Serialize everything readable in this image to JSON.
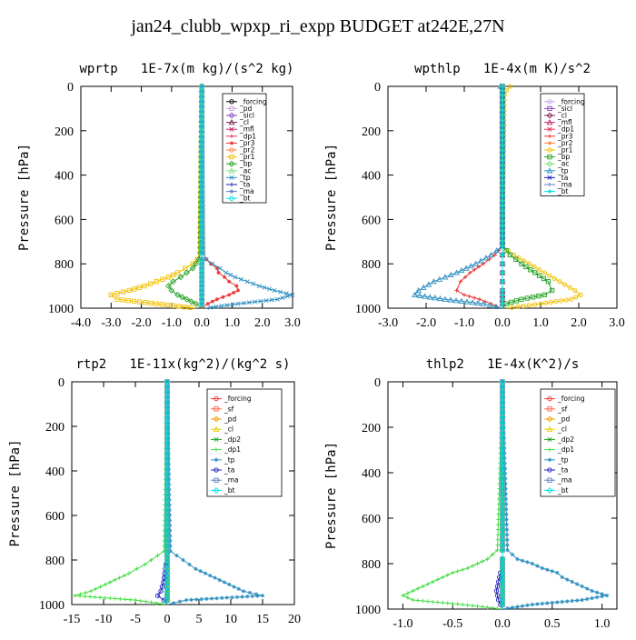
{
  "figure": {
    "title": "jan24_clubb_wpxp_ri_expp  BUDGET at242E,27N"
  },
  "chart_data": [
    {
      "type": "line",
      "title": "wprtp   1E-7x(m kg)/(s^2 kg)",
      "ylabel": "Pressure [hPa]",
      "xlim": [
        -4,
        3
      ],
      "ylim": [
        1000,
        0
      ],
      "x_ticks": [
        "-4.0",
        "-3.0",
        "-2.0",
        "-1.0",
        "0.0",
        "1.0",
        "2.0",
        "3.0"
      ],
      "y_ticks": [
        "0",
        "200",
        "400",
        "600",
        "800",
        "1000"
      ],
      "y": [
        0,
        750,
        780,
        800,
        820,
        840,
        860,
        880,
        900,
        920,
        940,
        960,
        980,
        1000
      ],
      "series": [
        {
          "name": "_forcing",
          "color": "#000000",
          "values": [
            0,
            0,
            0,
            0,
            0,
            0,
            0,
            0,
            0,
            0,
            0,
            0,
            0,
            0
          ]
        },
        {
          "name": "_pd",
          "color": "#c8a0e8",
          "values": [
            0,
            0,
            0,
            0,
            0,
            0,
            0,
            0,
            0,
            0,
            0,
            0,
            0,
            0
          ]
        },
        {
          "name": "_sicl",
          "color": "#8b3fbf",
          "values": [
            0,
            0,
            0,
            0,
            0,
            0,
            0,
            0,
            0,
            0,
            0,
            0,
            0,
            0
          ]
        },
        {
          "name": "_cl",
          "color": "#7a1f4f",
          "values": [
            0,
            0,
            0,
            0,
            0,
            0,
            0,
            0,
            0,
            0,
            0,
            0,
            0,
            0
          ]
        },
        {
          "name": "_mfl",
          "color": "#c0256a",
          "values": [
            0,
            0,
            0,
            0,
            0,
            0,
            0,
            0,
            0,
            0,
            0,
            0,
            0,
            0
          ]
        },
        {
          "name": "_dp1",
          "color": "#e0305a",
          "values": [
            0,
            0,
            0,
            0,
            0,
            0,
            0,
            0,
            0,
            0,
            0,
            0,
            0,
            0
          ]
        },
        {
          "name": "_pr3",
          "color": "#ee3030",
          "values": [
            0,
            0.05,
            0.15,
            0.3,
            0.5,
            0.55,
            0.75,
            0.9,
            1.15,
            1.2,
            0.9,
            0.5,
            0.2,
            0
          ]
        },
        {
          "name": "_pr2",
          "color": "#ff8040",
          "values": [
            0,
            0,
            0,
            0,
            0,
            0,
            0,
            0,
            0,
            0,
            0,
            0,
            0,
            0
          ]
        },
        {
          "name": "_pr1",
          "color": "#f0c000",
          "values": [
            0,
            -0.05,
            -0.15,
            -0.3,
            -0.55,
            -0.8,
            -1.1,
            -1.5,
            -1.9,
            -2.4,
            -3.0,
            -2.8,
            -1.5,
            -0.2
          ]
        },
        {
          "name": "_bp",
          "color": "#20a020",
          "values": [
            0,
            -0.05,
            -0.1,
            -0.2,
            -0.3,
            -0.5,
            -0.7,
            -0.95,
            -1.1,
            -1.0,
            -0.8,
            -0.5,
            -0.2,
            0
          ]
        },
        {
          "name": "_ac",
          "color": "#80e080",
          "values": [
            0,
            0,
            0,
            0,
            0,
            0,
            0,
            0,
            0,
            0,
            0,
            0,
            0,
            0
          ]
        },
        {
          "name": "_tp",
          "color": "#3090c0",
          "values": [
            0,
            0.05,
            0.15,
            0.35,
            0.6,
            0.8,
            1.1,
            1.5,
            1.9,
            2.4,
            3.0,
            2.5,
            1.2,
            0.1
          ]
        },
        {
          "name": "_ta",
          "color": "#2020c0",
          "values": [
            0,
            0,
            0,
            0,
            0,
            0,
            0,
            0,
            0,
            0,
            0,
            0,
            0,
            0
          ]
        },
        {
          "name": "_ma",
          "color": "#6080c0",
          "values": [
            0,
            0,
            0,
            0,
            0,
            0,
            0,
            0,
            0,
            0,
            0,
            0,
            0,
            0
          ]
        },
        {
          "name": "_bt",
          "color": "#00e0e0",
          "values": [
            0,
            0,
            0,
            0,
            0,
            0,
            0,
            0,
            0,
            0,
            0,
            0,
            0,
            0
          ]
        }
      ]
    },
    {
      "type": "line",
      "title": "wpthlp   1E-4x(m K)/s^2",
      "ylabel": "Pressure [hPa]",
      "xlim": [
        -3,
        3
      ],
      "ylim": [
        1000,
        0
      ],
      "x_ticks": [
        "-3.0",
        "-2.0",
        "-1.0",
        "0.0",
        "1.0",
        "2.0",
        "3.0"
      ],
      "y_ticks": [
        "0",
        "200",
        "400",
        "600",
        "800",
        "1000"
      ],
      "y": [
        0,
        20,
        40,
        720,
        760,
        800,
        840,
        880,
        920,
        940,
        960,
        980,
        1000
      ],
      "series": [
        {
          "name": "_forcing",
          "color": "#c8a0e8",
          "values": [
            0,
            0,
            0,
            0,
            0,
            0,
            0,
            0,
            0,
            0,
            0,
            0,
            0
          ]
        },
        {
          "name": "_sicl",
          "color": "#8b3fbf",
          "values": [
            0,
            0,
            0,
            0,
            0,
            0,
            0,
            0,
            0,
            0,
            0,
            0,
            0
          ]
        },
        {
          "name": "_cl",
          "color": "#7a1f4f",
          "values": [
            0,
            0,
            0,
            0,
            0,
            0,
            0,
            0,
            0,
            0,
            0,
            0,
            0
          ]
        },
        {
          "name": "_mfl",
          "color": "#c0256a",
          "values": [
            0,
            0,
            0,
            0,
            0,
            0,
            0,
            0,
            0,
            0,
            0,
            0,
            0
          ]
        },
        {
          "name": "_dp1",
          "color": "#e0305a",
          "values": [
            0,
            0,
            0,
            0,
            0,
            0,
            0,
            0,
            0,
            0,
            0,
            0,
            0
          ]
        },
        {
          "name": "_pr3",
          "color": "#ee3030",
          "values": [
            -0.05,
            -0.03,
            0,
            0,
            -0.2,
            -0.5,
            -0.85,
            -1.1,
            -1.2,
            -1.0,
            -0.6,
            -0.3,
            -0.05
          ]
        },
        {
          "name": "_pr2",
          "color": "#ff8040",
          "values": [
            0,
            0,
            0,
            0,
            0,
            0,
            0,
            0,
            0,
            0,
            0,
            0,
            0
          ]
        },
        {
          "name": "_pr1",
          "color": "#f0c000",
          "values": [
            0.2,
            0.1,
            0.05,
            0,
            0.3,
            0.7,
            1.1,
            1.5,
            1.9,
            2.05,
            1.8,
            1.0,
            0.1
          ]
        },
        {
          "name": "_bp",
          "color": "#20a020",
          "values": [
            0,
            0,
            0,
            0,
            0.2,
            0.5,
            0.85,
            1.2,
            1.3,
            1.1,
            0.5,
            0.1,
            0
          ]
        },
        {
          "name": "_ac",
          "color": "#80e080",
          "values": [
            0,
            0,
            0,
            0,
            0,
            0,
            0,
            0,
            0,
            0,
            0,
            0,
            0
          ]
        },
        {
          "name": "_tp",
          "color": "#3090c0",
          "values": [
            -0.05,
            0,
            0,
            0,
            -0.3,
            -0.7,
            -1.2,
            -1.8,
            -2.2,
            -2.3,
            -1.5,
            -0.5,
            0
          ]
        },
        {
          "name": "_ta",
          "color": "#2020c0",
          "values": [
            0,
            0,
            0,
            0,
            0,
            0,
            0,
            0,
            0,
            0,
            0,
            0,
            0
          ]
        },
        {
          "name": "_ma",
          "color": "#6080c0",
          "values": [
            0,
            0,
            0,
            0,
            0,
            0,
            0,
            0,
            0,
            0,
            0,
            0,
            0
          ]
        },
        {
          "name": "_bt",
          "color": "#00e0e0",
          "values": [
            0,
            0,
            0,
            0,
            0,
            0,
            0,
            0,
            0,
            0,
            0,
            0,
            0
          ]
        }
      ]
    },
    {
      "type": "line",
      "title": "rtp2   1E-11x(kg^2)/(kg^2 s)",
      "ylabel": "Pressure [hPa]",
      "xlim": [
        -15,
        20
      ],
      "ylim": [
        1000,
        0
      ],
      "x_ticks": [
        "-15",
        "-10",
        "-5",
        "0",
        "5",
        "10",
        "15",
        "20"
      ],
      "y_ticks": [
        "0",
        "200",
        "400",
        "600",
        "800",
        "1000"
      ],
      "y": [
        0,
        760,
        780,
        800,
        820,
        840,
        860,
        880,
        900,
        920,
        940,
        960,
        980,
        1000
      ],
      "series": [
        {
          "name": "_forcing",
          "color": "#ee3030",
          "values": [
            0,
            0,
            0,
            0,
            0,
            0,
            0,
            0,
            0,
            0,
            0,
            0,
            0,
            0
          ]
        },
        {
          "name": "_sf",
          "color": "#ff6040",
          "values": [
            0,
            0,
            0,
            0,
            0,
            0,
            0,
            0,
            0,
            0,
            0,
            0,
            0,
            0
          ]
        },
        {
          "name": "_pd",
          "color": "#f0a000",
          "values": [
            0,
            0,
            0,
            0,
            0,
            0,
            0,
            0,
            0,
            0,
            0,
            0,
            0,
            0
          ]
        },
        {
          "name": "_cl",
          "color": "#e8d000",
          "values": [
            0,
            0,
            0,
            0,
            0,
            0,
            0,
            0,
            0,
            0,
            0,
            0,
            0,
            0
          ]
        },
        {
          "name": "_dp2",
          "color": "#20a020",
          "values": [
            0,
            0,
            0,
            0,
            0,
            0,
            0,
            0,
            0,
            0,
            0,
            0,
            0,
            0
          ]
        },
        {
          "name": "_dp1",
          "color": "#40e040",
          "values": [
            0,
            -0.5,
            -1.5,
            -2.5,
            -3.5,
            -4.8,
            -6,
            -7.5,
            -9,
            -10.5,
            -12,
            -14.5,
            -5,
            0
          ]
        },
        {
          "name": "_tp",
          "color": "#3090c0",
          "values": [
            0,
            0.5,
            1.5,
            2.5,
            3.5,
            4.5,
            6,
            7.5,
            9,
            10.5,
            12,
            15,
            3,
            0
          ]
        },
        {
          "name": "_ta",
          "color": "#2020c0",
          "values": [
            0,
            0,
            0,
            0,
            -0.2,
            -0.3,
            -0.4,
            -0.5,
            -0.6,
            -0.8,
            -1,
            -1.5,
            -0.5,
            0
          ]
        },
        {
          "name": "_ma",
          "color": "#6080c0",
          "values": [
            0,
            0,
            0,
            0,
            0,
            0,
            0,
            0,
            0,
            0,
            0,
            0,
            0,
            0
          ]
        },
        {
          "name": "_bt",
          "color": "#00e0e0",
          "values": [
            0,
            0,
            0,
            0,
            0,
            0,
            0,
            0,
            0,
            0,
            0,
            0,
            0,
            0
          ]
        }
      ]
    },
    {
      "type": "line",
      "title": "thlp2   1E-4x(K^2)/s",
      "ylabel": "Pressure [hPa]",
      "xlim": [
        -1.15,
        1.15
      ],
      "ylim": [
        1000,
        0
      ],
      "x_ticks": [
        "-1.0",
        "-0.5",
        "0.0",
        "0.5",
        "1.0"
      ],
      "y_ticks": [
        "0",
        "200",
        "400",
        "600",
        "800",
        "1000"
      ],
      "y": [
        0,
        740,
        780,
        800,
        820,
        840,
        860,
        880,
        900,
        920,
        940,
        960,
        980,
        1000
      ],
      "series": [
        {
          "name": "_forcing",
          "color": "#ee3030",
          "values": [
            0,
            0,
            0,
            0,
            0,
            0,
            0,
            0,
            0,
            0,
            0,
            0,
            0,
            0
          ]
        },
        {
          "name": "_sf",
          "color": "#ff6040",
          "values": [
            0,
            0,
            0,
            0,
            0,
            0,
            0,
            0,
            0,
            0,
            0,
            0,
            0,
            0
          ]
        },
        {
          "name": "_pd",
          "color": "#f0a000",
          "values": [
            0,
            0,
            0,
            0,
            0,
            0,
            0,
            0,
            0,
            0,
            0,
            0,
            0,
            0
          ]
        },
        {
          "name": "_cl",
          "color": "#e8d000",
          "values": [
            0,
            0,
            0,
            0,
            0,
            0,
            0,
            0,
            0,
            0,
            0,
            0,
            0,
            0
          ]
        },
        {
          "name": "_dp2",
          "color": "#20a020",
          "values": [
            0,
            0,
            0,
            0,
            0,
            0,
            0,
            0,
            0,
            0,
            0,
            0,
            0,
            0
          ]
        },
        {
          "name": "_dp1",
          "color": "#40e040",
          "values": [
            0,
            -0.05,
            -0.15,
            -0.25,
            -0.35,
            -0.5,
            -0.6,
            -0.7,
            -0.8,
            -0.9,
            -1.0,
            -0.9,
            -0.4,
            0
          ]
        },
        {
          "name": "_tp",
          "color": "#3090c0",
          "values": [
            0,
            0.05,
            0.15,
            0.3,
            0.4,
            0.55,
            0.6,
            0.7,
            0.8,
            0.9,
            1.05,
            0.8,
            0.3,
            0
          ]
        },
        {
          "name": "_ta",
          "color": "#2020c0",
          "values": [
            0,
            0,
            0,
            0,
            0,
            -0.02,
            -0.03,
            -0.04,
            -0.05,
            -0.06,
            -0.05,
            -0.04,
            -0.02,
            0
          ]
        },
        {
          "name": "_ma",
          "color": "#6080c0",
          "values": [
            0,
            0,
            0,
            0,
            0,
            0,
            0,
            0,
            0,
            0,
            0,
            0,
            0,
            0
          ]
        },
        {
          "name": "_bt",
          "color": "#00e0e0",
          "values": [
            0,
            0,
            0,
            0,
            0,
            0,
            0,
            0,
            0,
            0,
            0,
            0,
            0,
            0
          ]
        }
      ]
    }
  ]
}
